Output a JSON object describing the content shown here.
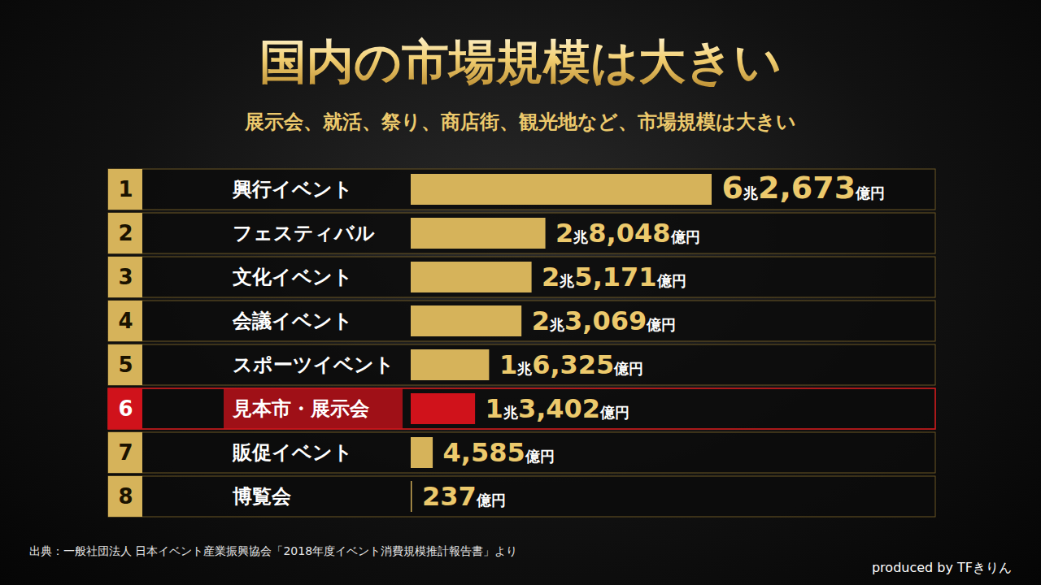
{
  "chart_data": {
    "type": "bar",
    "orientation": "horizontal",
    "title": "国内の市場規模は大きい",
    "subtitle": "展示会、就活、祭り、商店街、観光地など、市場規模は大きい",
    "categories": [
      "興行イベント",
      "フェスティバル",
      "文化イベント",
      "会議イベント",
      "スポーツイベント",
      "見本市・展示会",
      "販促イベント",
      "博覧会"
    ],
    "ranks": [
      1,
      2,
      3,
      4,
      5,
      6,
      7,
      8
    ],
    "values": [
      62673,
      28048,
      25171,
      23069,
      16325,
      13402,
      4585,
      237
    ],
    "value_labels": [
      "6兆2,673億円",
      "2兆8,048億円",
      "2兆5,171億円",
      "2兆3,069億円",
      "1兆6,325億円",
      "1兆3,402億円",
      "4,585億円",
      "237億円"
    ],
    "colors": [
      "#d6b35a",
      "#d6b35a",
      "#d6b35a",
      "#d6b35a",
      "#d6b35a",
      "#d0121b",
      "#d6b35a",
      "#d6b35a"
    ],
    "data_labels": true,
    "xlim": [
      0,
      62673
    ],
    "xticks": [],
    "tick_labels": false,
    "grid": false,
    "source": "出典：一般社団法人 日本イベント産業振興協会「2018年度イベント消費規模推計報告書」より",
    "annotations": [
      "produced by TFきりん"
    ]
  }
}
